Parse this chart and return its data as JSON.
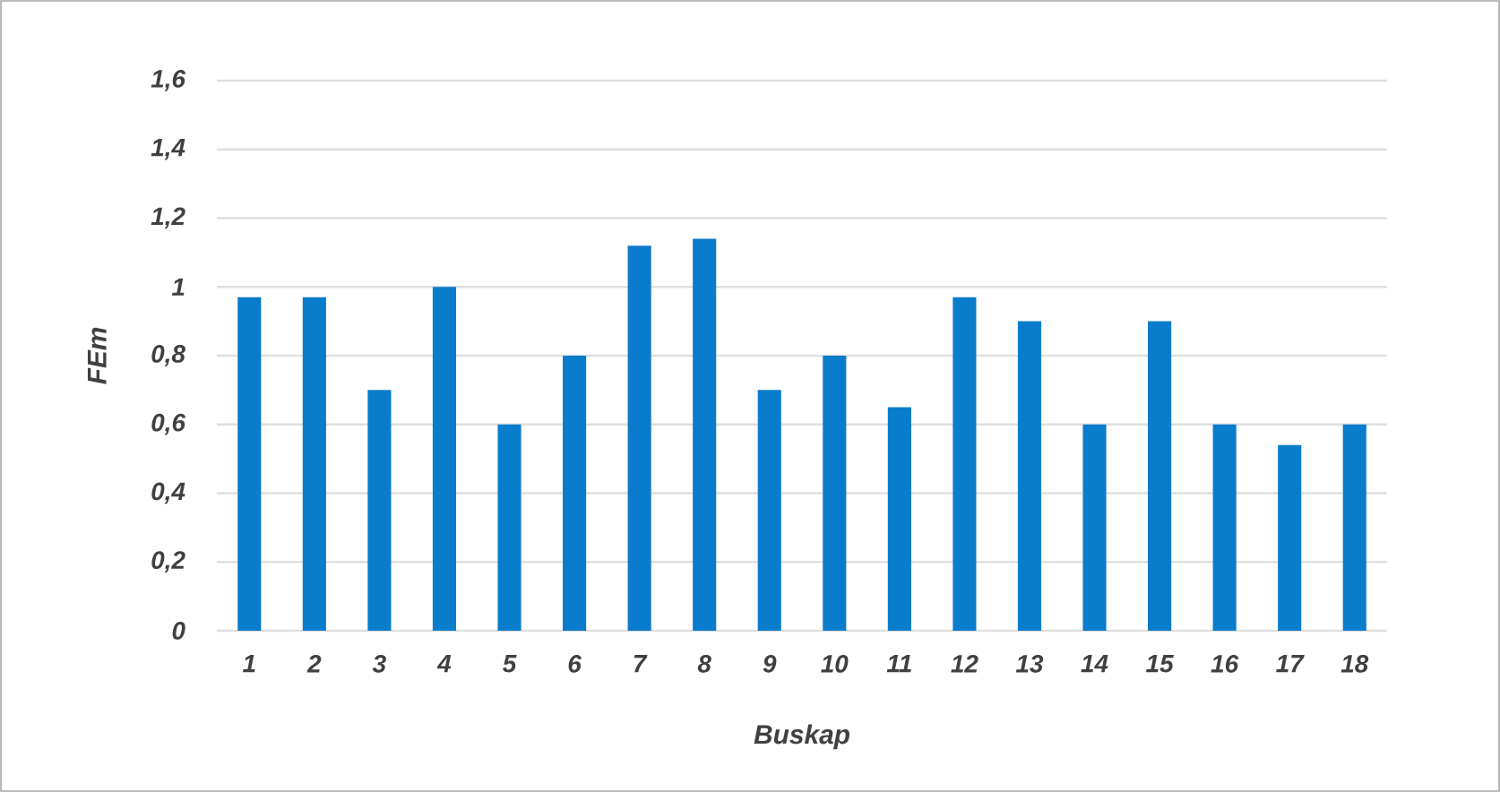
{
  "chart_data": {
    "type": "bar",
    "xlabel": "Buskap",
    "ylabel": "FEm",
    "categories": [
      "1",
      "2",
      "3",
      "4",
      "5",
      "6",
      "7",
      "8",
      "9",
      "10",
      "11",
      "12",
      "13",
      "14",
      "15",
      "16",
      "17",
      "18"
    ],
    "values": [
      0.97,
      0.97,
      0.7,
      1.0,
      0.6,
      0.8,
      1.12,
      1.14,
      0.7,
      0.8,
      0.65,
      0.97,
      0.9,
      0.6,
      0.9,
      0.6,
      0.54,
      0.6
    ],
    "color": "#0a7ccc",
    "ylim": [
      0,
      1.6
    ],
    "yticks": [
      0,
      {
        "value": 0.2,
        "label": "0,2"
      },
      {
        "value": 0.4,
        "label": "0,4"
      },
      {
        "value": 0.6,
        "label": "0,6"
      },
      {
        "value": 0.8,
        "label": "0,8"
      },
      1,
      {
        "value": 1.2,
        "label": "1,2"
      },
      {
        "value": 1.4,
        "label": "1,4"
      },
      {
        "value": 1.6,
        "label": "1,6"
      }
    ],
    "grid": "y"
  }
}
